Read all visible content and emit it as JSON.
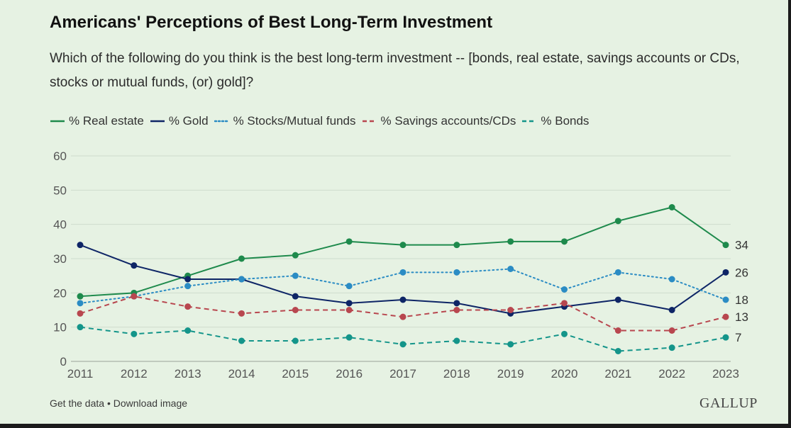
{
  "header": {
    "title": "Americans' Perceptions of Best Long-Term Investment",
    "subtitle": "Which of the following do you think is the best long-term investment -- [bonds, real estate, savings accounts or CDs, stocks or mutual funds, (or) gold]?"
  },
  "footer": {
    "get_data": "Get the data",
    "separator": "•",
    "download": "Download image",
    "logo": "GALLUP"
  },
  "chart_data": {
    "type": "line",
    "title": "Americans' Perceptions of Best Long-Term Investment",
    "xlabel": "",
    "ylabel": "",
    "ylim": [
      0,
      60
    ],
    "yticks": [
      0,
      10,
      20,
      30,
      40,
      50,
      60
    ],
    "grid": true,
    "legend_position": "top-left",
    "categories": [
      "2011",
      "2012",
      "2013",
      "2014",
      "2015",
      "2016",
      "2017",
      "2018",
      "2019",
      "2020",
      "2021",
      "2022",
      "2023"
    ],
    "series": [
      {
        "name": "% Real estate",
        "color": "#1e8a4c",
        "dash": "solid",
        "values": [
          19,
          20,
          25,
          30,
          31,
          35,
          34,
          34,
          35,
          35,
          41,
          45,
          34
        ],
        "end_label": "34"
      },
      {
        "name": "% Gold",
        "color": "#0e2566",
        "dash": "solid",
        "values": [
          34,
          28,
          24,
          24,
          19,
          17,
          18,
          17,
          14,
          16,
          18,
          15,
          26
        ],
        "end_label": "26"
      },
      {
        "name": "% Stocks/Mutual funds",
        "color": "#2b8cc4",
        "dash": "dotted",
        "values": [
          17,
          19,
          22,
          24,
          25,
          22,
          26,
          26,
          27,
          21,
          26,
          24,
          18
        ],
        "end_label": "18"
      },
      {
        "name": "% Savings accounts/CDs",
        "color": "#b8474f",
        "dash": "dashed",
        "values": [
          14,
          19,
          16,
          14,
          15,
          15,
          13,
          15,
          15,
          17,
          9,
          9,
          13
        ],
        "end_label": "13"
      },
      {
        "name": "% Bonds",
        "color": "#14958a",
        "dash": "dashed",
        "values": [
          10,
          8,
          9,
          6,
          6,
          7,
          5,
          6,
          5,
          8,
          3,
          4,
          7
        ],
        "end_label": "7"
      }
    ]
  }
}
